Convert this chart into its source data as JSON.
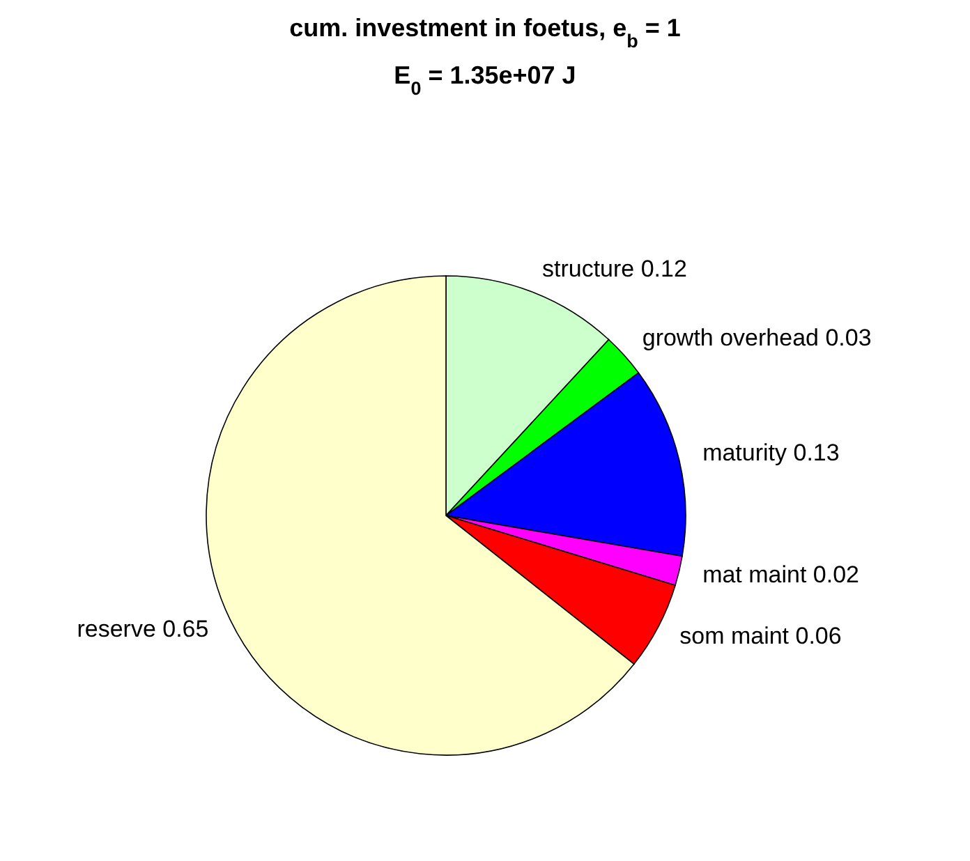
{
  "chart_data": {
    "type": "pie",
    "title": "cum. investment in foetus, e$_{b}$ = 1",
    "subtitle": "E$_{0}$ = 1.35e+07 J",
    "categories": [
      "structure",
      "growth overhead",
      "maturity",
      "mat maint",
      "som maint",
      "reserve"
    ],
    "values": [
      0.12,
      0.03,
      0.13,
      0.02,
      0.06,
      0.65
    ],
    "colors": [
      "#ccffcc",
      "#00ff00",
      "#0000ff",
      "#ff00ff",
      "#ff0000",
      "#ffffcc"
    ],
    "data_labels": true
  }
}
